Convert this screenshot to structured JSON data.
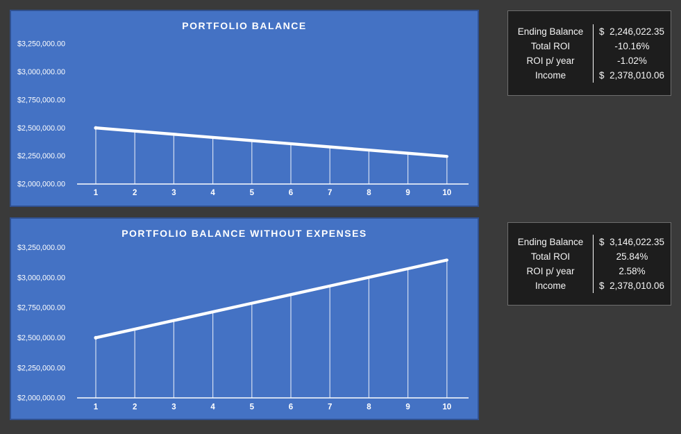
{
  "colors": {
    "page_background": "#3a3a3a",
    "chart_background": "#4472c4",
    "chart_border": "#30508f",
    "series_line": "#ffffff",
    "axis": "#ffffff",
    "stats_background": "#1d1d1d",
    "stats_border": "#6e6e6e",
    "stats_divider": "#ffffff",
    "text": "#ffffff"
  },
  "chart_data": [
    {
      "type": "line",
      "title": "PORTFOLIO BALANCE",
      "xlabel": "",
      "ylabel": "",
      "x": [
        "1",
        "2",
        "3",
        "4",
        "5",
        "6",
        "7",
        "8",
        "9",
        "10"
      ],
      "values": [
        2500000,
        2471780,
        2443560,
        2415339,
        2387119,
        2358899,
        2330679,
        2302459,
        2274238,
        2246022
      ],
      "y_ticks": [
        {
          "label": "$3,250,000.00",
          "value": 3250000
        },
        {
          "label": "$3,000,000.00",
          "value": 3000000
        },
        {
          "label": "$2,750,000.00",
          "value": 2750000
        },
        {
          "label": "$2,500,000.00",
          "value": 2500000
        },
        {
          "label": "$2,250,000.00",
          "value": 2250000
        },
        {
          "label": "$2,000,000.00",
          "value": 2000000
        }
      ],
      "ylim": [
        2000000,
        3300000
      ],
      "grid": false,
      "legend": "none",
      "drop_lines": true
    },
    {
      "type": "line",
      "title": "PORTFOLIO BALANCE WITHOUT EXPENSES",
      "xlabel": "",
      "ylabel": "",
      "x": [
        "1",
        "2",
        "3",
        "4",
        "5",
        "6",
        "7",
        "8",
        "9",
        "10"
      ],
      "values": [
        2500000,
        2571780,
        2643560,
        2715339,
        2787119,
        2858899,
        2930679,
        3002459,
        3074238,
        3146022
      ],
      "y_ticks": [
        {
          "label": "$3,250,000.00",
          "value": 3250000
        },
        {
          "label": "$3,000,000.00",
          "value": 3000000
        },
        {
          "label": "$2,750,000.00",
          "value": 2750000
        },
        {
          "label": "$2,500,000.00",
          "value": 2500000
        },
        {
          "label": "$2,250,000.00",
          "value": 2250000
        },
        {
          "label": "$2,000,000.00",
          "value": 2000000
        }
      ],
      "ylim": [
        2000000,
        3300000
      ],
      "grid": false,
      "legend": "none",
      "drop_lines": true
    }
  ],
  "stats_panels": [
    {
      "rows": [
        {
          "label": "Ending Balance",
          "value": "$ 2,246,022.35",
          "align": "justify"
        },
        {
          "label": "Total ROI",
          "value": "-10.16%",
          "align": "center"
        },
        {
          "label": "ROI p/ year",
          "value": "-1.02%",
          "align": "center"
        },
        {
          "label": "Income",
          "value": "$ 2,378,010.06",
          "align": "justify"
        }
      ]
    },
    {
      "rows": [
        {
          "label": "Ending Balance",
          "value": "$ 3,146,022.35",
          "align": "justify"
        },
        {
          "label": "Total ROI",
          "value": "25.84%",
          "align": "center"
        },
        {
          "label": "ROI p/ year",
          "value": "2.58%",
          "align": "center"
        },
        {
          "label": "Income",
          "value": "$ 2,378,010.06",
          "align": "justify"
        }
      ]
    }
  ]
}
